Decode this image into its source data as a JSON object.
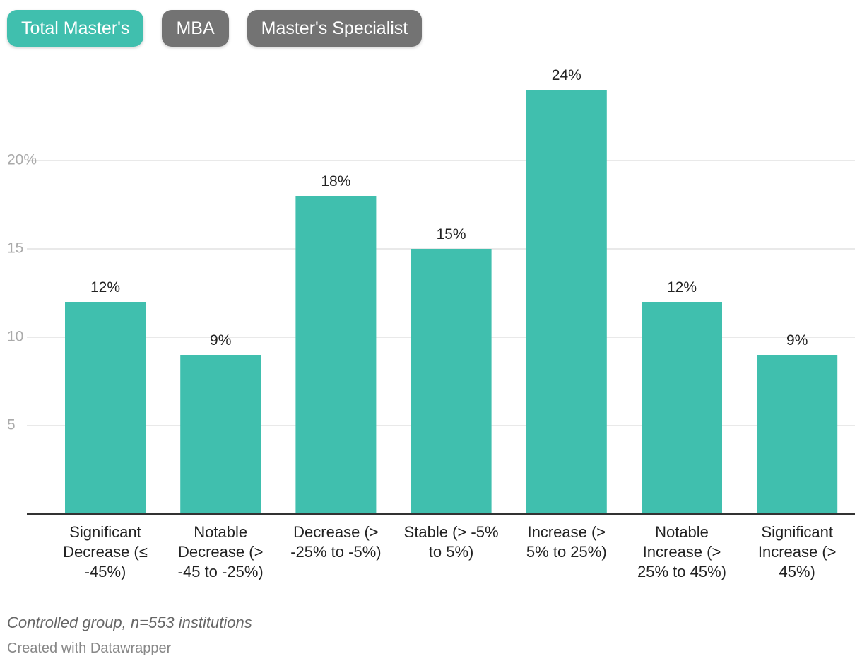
{
  "tabs": [
    {
      "label": "Total Master's",
      "active": true
    },
    {
      "label": "MBA",
      "active": false
    },
    {
      "label": "Master's Specialist",
      "active": false
    }
  ],
  "colors": {
    "bar": "#40bfae",
    "tab_active": "#40bfae",
    "tab_inactive": "#737373",
    "grid": "#e2e2e2",
    "tick_text": "#aaaaaa",
    "axis": "#333333"
  },
  "chart_data": {
    "type": "bar",
    "categories": [
      [
        "Significant",
        "Decrease (≤",
        "-45%)"
      ],
      [
        "Notable",
        "Decrease (>",
        "-45 to -25%)"
      ],
      [
        "Decrease (>",
        "-25% to -5%)"
      ],
      [
        "Stable (> -5%",
        "to 5%)"
      ],
      [
        "Increase (>",
        "5% to 25%)"
      ],
      [
        "Notable",
        "Increase (>",
        "25% to 45%)"
      ],
      [
        "Significant",
        "Increase (>",
        "45%)"
      ]
    ],
    "values": [
      12,
      9,
      18,
      15,
      24,
      12,
      9
    ],
    "value_labels": [
      "12%",
      "9%",
      "18%",
      "15%",
      "24%",
      "12%",
      "9%"
    ],
    "yticks": [
      {
        "value": 5,
        "label": "5"
      },
      {
        "value": 10,
        "label": "10"
      },
      {
        "value": 15,
        "label": "15"
      },
      {
        "value": 20,
        "label": "20%"
      }
    ],
    "ylim": [
      0,
      24
    ],
    "grid": true,
    "legend": "none"
  },
  "footer": {
    "note": "Controlled group, n=553 institutions",
    "credit": "Created with Datawrapper"
  }
}
